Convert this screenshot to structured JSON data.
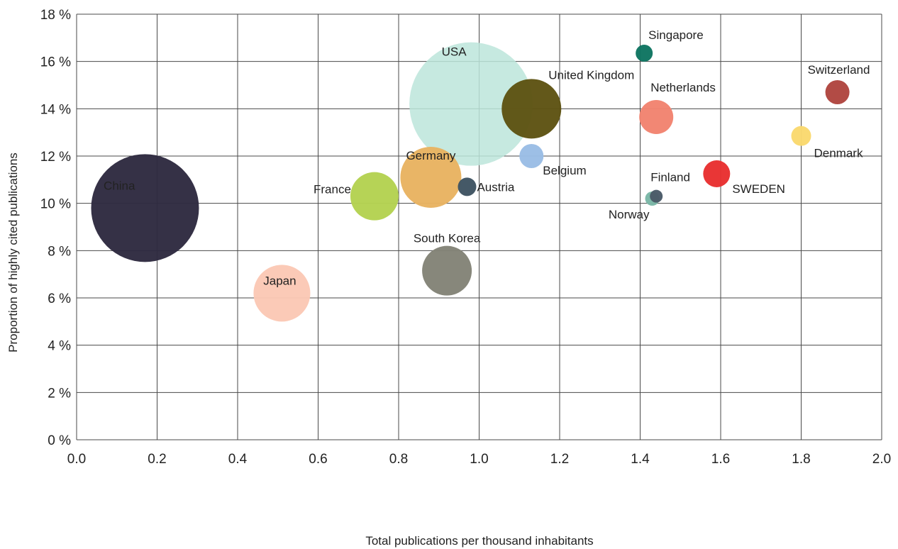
{
  "chart_data": {
    "type": "scatter",
    "xlabel": "Total publications per thousand inhabitants",
    "ylabel": "Proportion of highly cited publications",
    "xlim": [
      0,
      2.0
    ],
    "ylim": [
      0,
      18
    ],
    "x_ticks": [
      "0.0",
      "0.2",
      "0.4",
      "0.6",
      "0.8",
      "1.0",
      "1.2",
      "1.4",
      "1.6",
      "1.8",
      "2.0"
    ],
    "y_ticks": [
      "0 %",
      "2 %",
      "4 %",
      "6 %",
      "8 %",
      "10 %",
      "12 %",
      "14 %",
      "16 %",
      "18 %"
    ],
    "grid": true,
    "points": [
      {
        "name": "China",
        "x": 0.17,
        "y": 9.8,
        "size": 76,
        "color": "#2e2a40",
        "label_color": "#ffffff"
      },
      {
        "name": "Japan",
        "x": 0.51,
        "y": 6.2,
        "size": 40,
        "color": "#fbc8b5",
        "label_color": "#222222"
      },
      {
        "name": "France",
        "x": 0.74,
        "y": 10.3,
        "size": 34,
        "color": "#b4d251",
        "label_color": "#222222"
      },
      {
        "name": "South Korea",
        "x": 0.92,
        "y": 7.15,
        "size": 35,
        "color": "#838377",
        "label_color": "#222222"
      },
      {
        "name": "Germany",
        "x": 0.88,
        "y": 11.1,
        "size": 43,
        "color": "#e8b361",
        "label_color": "#222222"
      },
      {
        "name": "USA",
        "x": 0.98,
        "y": 14.2,
        "size": 87,
        "color": "#bce5db",
        "label_color": "#222222"
      },
      {
        "name": "Austria",
        "x": 0.97,
        "y": 10.7,
        "size": 13,
        "color": "#3f5462",
        "label_color": "#222222"
      },
      {
        "name": "United Kingdom",
        "x": 1.13,
        "y": 14.0,
        "size": 42,
        "color": "#5e5313",
        "label_color": "#222222"
      },
      {
        "name": "Belgium",
        "x": 1.13,
        "y": 12.0,
        "size": 17,
        "color": "#9abde5",
        "label_color": "#222222"
      },
      {
        "name": "Singapore",
        "x": 1.41,
        "y": 16.35,
        "size": 12,
        "color": "#0e7561",
        "label_color": "#222222"
      },
      {
        "name": "Netherlands",
        "x": 1.44,
        "y": 13.65,
        "size": 24,
        "color": "#f28370",
        "label_color": "#222222"
      },
      {
        "name": "Norway",
        "x": 1.43,
        "y": 10.2,
        "size": 10,
        "color": "#7ab7a6",
        "label_color": "#222222"
      },
      {
        "name": "Finland",
        "x": 1.44,
        "y": 10.3,
        "size": 9,
        "color": "#4a5a68",
        "label_color": "#222222"
      },
      {
        "name": "SWEDEN",
        "x": 1.59,
        "y": 11.25,
        "size": 19,
        "color": "#e8302f",
        "label_color": "#e8302f"
      },
      {
        "name": "Denmark",
        "x": 1.8,
        "y": 12.85,
        "size": 14,
        "color": "#fad96e",
        "label_color": "#222222"
      },
      {
        "name": "Switzerland",
        "x": 1.89,
        "y": 14.7,
        "size": 17,
        "color": "#b0453f",
        "label_color": "#222222"
      }
    ]
  }
}
